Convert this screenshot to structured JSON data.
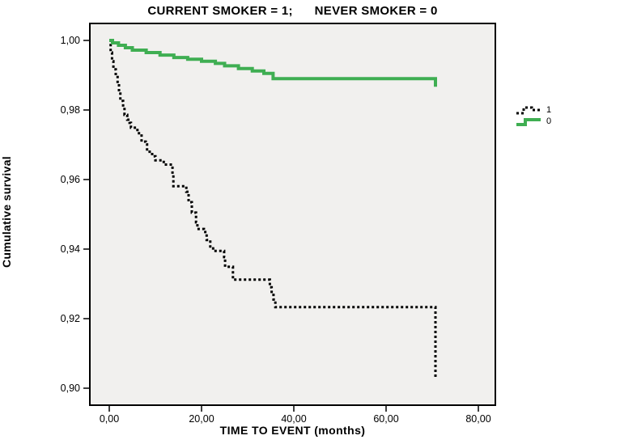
{
  "chart_data": {
    "type": "line",
    "subtype": "kaplan-meier-step-survival",
    "title": "CURRENT SMOKER = 1;      NEVER SMOKER = 0",
    "xlabel": "TIME TO EVENT (months)",
    "ylabel": "Cumulative survival",
    "xlim": [
      -4.4,
      83.9
    ],
    "ylim": [
      0.895,
      1.005
    ],
    "grid": false,
    "plot_bg": "#f1f0ee",
    "border_color": "#000000",
    "x_ticks": {
      "values": [
        0,
        20,
        40,
        60,
        80
      ],
      "labels": [
        "0,00",
        "20,00",
        "40,00",
        "60,00",
        "80,00"
      ]
    },
    "y_ticks": {
      "values": [
        1.0,
        0.98,
        0.96,
        0.94,
        0.92,
        0.9
      ],
      "labels": [
        "1,00",
        "0,98",
        "0,96",
        "0,94",
        "0,92",
        "0,90"
      ]
    },
    "legend": {
      "position": "right",
      "entries": [
        {
          "label": "1",
          "color": "#000000",
          "style": "dashed"
        },
        {
          "label": "0",
          "color": "#3fae52",
          "style": "solid"
        }
      ]
    },
    "series": [
      {
        "name": "1",
        "color": "#000000",
        "line": "dashed",
        "width": 3,
        "points": [
          [
            0,
            1.0
          ],
          [
            0.3,
            0.9965
          ],
          [
            0.6,
            0.994
          ],
          [
            0.9,
            0.9917
          ],
          [
            1.4,
            0.9899
          ],
          [
            1.8,
            0.9876
          ],
          [
            2.1,
            0.9851
          ],
          [
            2.4,
            0.9826
          ],
          [
            3.0,
            0.9803
          ],
          [
            3.3,
            0.9786
          ],
          [
            3.9,
            0.9772
          ],
          [
            4.4,
            0.9763
          ],
          [
            4.7,
            0.9749
          ],
          [
            6.1,
            0.9733
          ],
          [
            7.0,
            0.9709
          ],
          [
            7.9,
            0.9701
          ],
          [
            8.2,
            0.968
          ],
          [
            9.3,
            0.9667
          ],
          [
            10.0,
            0.9655
          ],
          [
            11.8,
            0.9643
          ],
          [
            13.7,
            0.9616
          ],
          [
            13.9,
            0.9581
          ],
          [
            16.7,
            0.9565
          ],
          [
            17.2,
            0.9535
          ],
          [
            17.9,
            0.9505
          ],
          [
            18.8,
            0.9477
          ],
          [
            19.1,
            0.9458
          ],
          [
            20.5,
            0.9449
          ],
          [
            21.1,
            0.9426
          ],
          [
            21.9,
            0.9402
          ],
          [
            22.5,
            0.9395
          ],
          [
            24.9,
            0.9377
          ],
          [
            25.1,
            0.9349
          ],
          [
            26.8,
            0.9312
          ],
          [
            34.8,
            0.929
          ],
          [
            35.2,
            0.9272
          ],
          [
            35.6,
            0.9255
          ],
          [
            36.0,
            0.9233
          ],
          [
            70.7,
            0.903
          ]
        ]
      },
      {
        "name": "0",
        "color": "#3fae52",
        "line": "solid",
        "width": 4,
        "points": [
          [
            0,
            1.0
          ],
          [
            0.7,
            0.9993
          ],
          [
            2.0,
            0.9986
          ],
          [
            3.5,
            0.9979
          ],
          [
            5.0,
            0.9972
          ],
          [
            8.0,
            0.9965
          ],
          [
            11.0,
            0.9958
          ],
          [
            14.0,
            0.9951
          ],
          [
            17.0,
            0.9946
          ],
          [
            20.0,
            0.994
          ],
          [
            23.0,
            0.9934
          ],
          [
            25.0,
            0.9927
          ],
          [
            28.0,
            0.9919
          ],
          [
            31.0,
            0.9912
          ],
          [
            33.5,
            0.9905
          ],
          [
            35.5,
            0.989
          ],
          [
            70.7,
            0.9867
          ]
        ]
      }
    ]
  }
}
